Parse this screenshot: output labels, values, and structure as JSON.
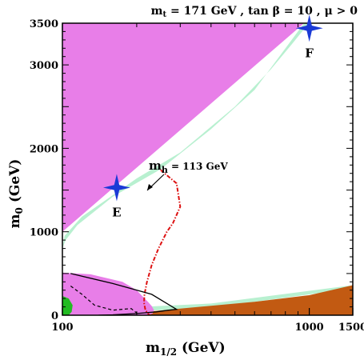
{
  "chart_data": {
    "type": "area",
    "title": "m_t = 171 GeV , tan β = 10 , μ > 0",
    "title_parts": {
      "m": "m",
      "t": "t",
      "rest": " = 171 GeV , tan β = 10 ,  μ > 0"
    },
    "xlabel": {
      "main": "m",
      "sub": "1/2",
      "rest": " (GeV)"
    },
    "ylabel": {
      "main": "m",
      "sub": "0",
      "rest": " (GeV)"
    },
    "xlim": [
      100,
      1500
    ],
    "ylim": [
      0,
      3500
    ],
    "x_scale": "log",
    "grid": false,
    "legend": "none",
    "x_tick_labels": [
      {
        "value": 100,
        "label": "100"
      },
      {
        "value": 1000,
        "label": "1000"
      },
      {
        "value": 1500,
        "label": "1500"
      }
    ],
    "y_tick_labels": [
      {
        "value": 0,
        "label": "0"
      },
      {
        "value": 1000,
        "label": "1000"
      },
      {
        "value": 2000,
        "label": "2000"
      },
      {
        "value": 3000,
        "label": "3000"
      },
      {
        "value": 3500,
        "label": "3500"
      }
    ],
    "colors": {
      "charged_lsp": "#e87ee8",
      "relic_density": "#b8f0d0",
      "ewsb_excluded": "#c25a12",
      "bsg_excluded": "#22bb22",
      "benchmark": "#1a3ad6",
      "higgs_contour": "#dd1111"
    },
    "regions": {
      "stau_lsp_upper": [
        [
          100,
          900
        ],
        [
          100,
          1000
        ],
        [
          952,
          3500
        ],
        [
          100,
          3500
        ]
      ],
      "stau_lsp_lower": [
        [
          100,
          0
        ],
        [
          100,
          510
        ],
        [
          130,
          490
        ],
        [
          175,
          400
        ],
        [
          200,
          300
        ],
        [
          212,
          220
        ],
        [
          222,
          160
        ],
        [
          230,
          110
        ],
        [
          235,
          60
        ],
        [
          232,
          20
        ],
        [
          220,
          0
        ]
      ],
      "relic_strip": [
        [
          100,
          800
        ],
        [
          102,
          950
        ],
        [
          120,
          1180
        ],
        [
          200,
          1640
        ],
        [
          300,
          1950
        ],
        [
          500,
          2500
        ],
        [
          700,
          2950
        ],
        [
          850,
          3250
        ],
        [
          990,
          3490
        ],
        [
          952,
          3500
        ],
        [
          600,
          2700
        ],
        [
          400,
          2230
        ],
        [
          250,
          1750
        ],
        [
          160,
          1420
        ],
        [
          115,
          1080
        ],
        [
          103,
          900
        ]
      ],
      "relic_band_low": [
        [
          100,
          0
        ],
        [
          400,
          90
        ],
        [
          1500,
          320
        ],
        [
          1500,
          360
        ],
        [
          400,
          140
        ],
        [
          150,
          80
        ],
        [
          100,
          60
        ]
      ],
      "ewsb_region": [
        [
          158,
          0
        ],
        [
          300,
          80
        ],
        [
          600,
          160
        ],
        [
          1000,
          240
        ],
        [
          1500,
          360
        ],
        [
          1500,
          0
        ]
      ],
      "bsg_region": [
        [
          100,
          0
        ],
        [
          100,
          230
        ],
        [
          106,
          200
        ],
        [
          110,
          120
        ],
        [
          109,
          40
        ],
        [
          106,
          0
        ]
      ]
    },
    "series": [
      {
        "label": "m_h = 113 GeV",
        "label_parts": {
          "m": "m",
          "h": "h",
          "rest": " = 113 GeV"
        },
        "style": "dash-dot",
        "x": [
          250,
          290,
          300,
          280,
          265,
          245,
          230,
          220,
          215,
          214,
          217,
          225
        ],
        "y": [
          1740,
          1580,
          1300,
          1100,
          1000,
          800,
          600,
          400,
          250,
          150,
          60,
          0
        ]
      },
      {
        "label": "black-solid-contour",
        "style": "solid",
        "x": [
          108,
          160,
          230,
          290,
          270,
          240,
          200,
          160,
          140
        ],
        "y": [
          500,
          380,
          250,
          70,
          60,
          40,
          20,
          5,
          0
        ]
      },
      {
        "label": "black-dashed-contour",
        "style": "dashed",
        "x": [
          108,
          120,
          135,
          160,
          190,
          205
        ],
        "y": [
          350,
          250,
          120,
          60,
          80,
          0
        ]
      }
    ],
    "points": [
      {
        "label": "E",
        "x": 166,
        "y": 1530
      },
      {
        "label": "F",
        "x": 1000,
        "y": 3440
      }
    ]
  }
}
